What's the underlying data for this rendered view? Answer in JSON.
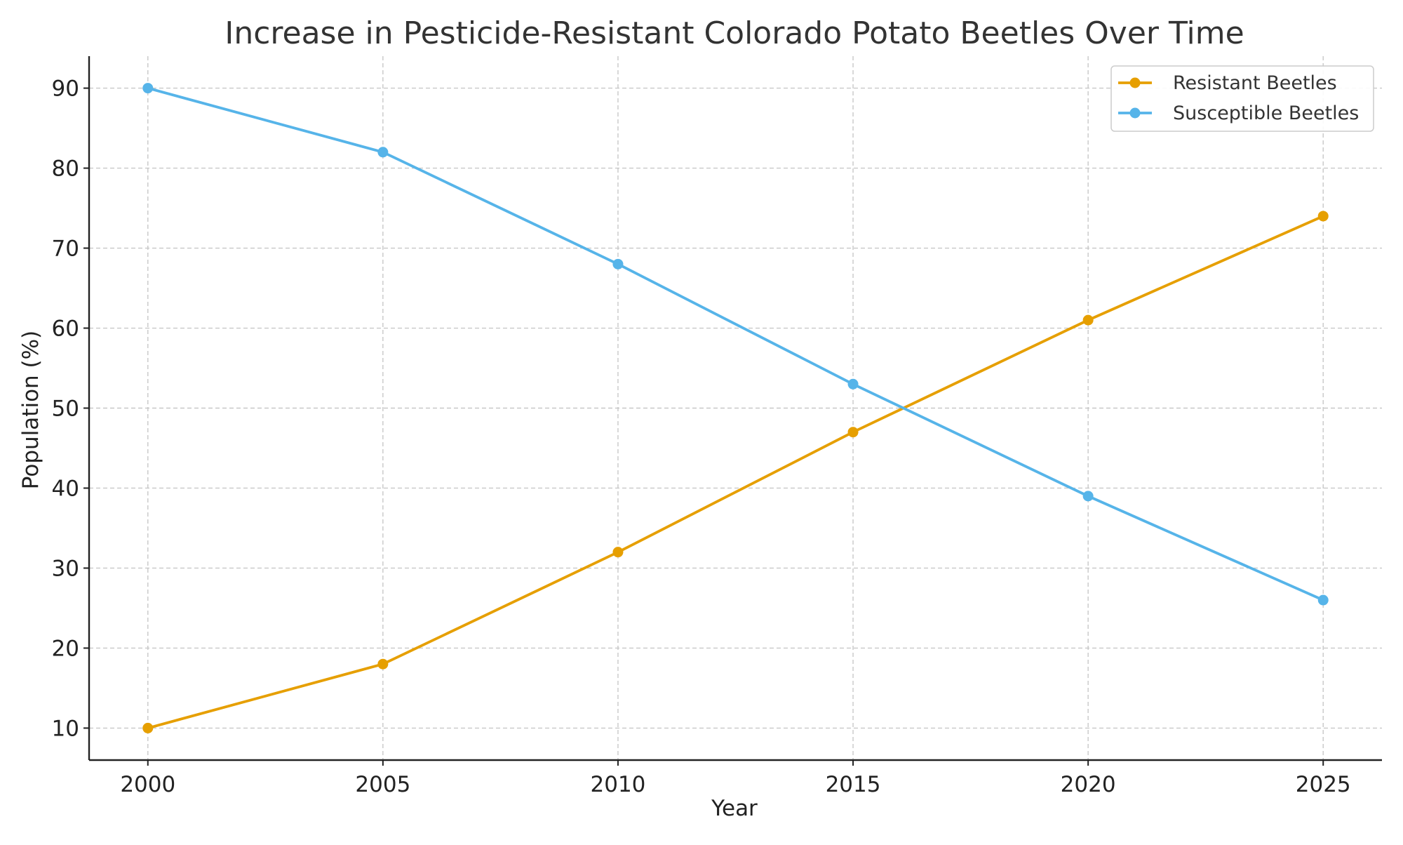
{
  "chart_data": {
    "type": "line",
    "title": "Increase in Pesticide-Resistant Colorado Potato Beetles Over Time",
    "xlabel": "Year",
    "ylabel": "Population (%)",
    "x": [
      2000,
      2005,
      2010,
      2015,
      2020,
      2025
    ],
    "x_ticks": [
      "2000",
      "2005",
      "2010",
      "2015",
      "2020",
      "2025"
    ],
    "y_ticks": [
      "10",
      "20",
      "30",
      "40",
      "50",
      "60",
      "70",
      "80",
      "90"
    ],
    "xlim": [
      1998.75,
      2026.25
    ],
    "ylim": [
      6,
      94
    ],
    "grid": true,
    "legend_position": "top-right",
    "series": [
      {
        "name": "Resistant Beetles",
        "color": "#E69F00",
        "marker": "circle",
        "values": [
          10,
          18,
          32,
          47,
          61,
          74
        ]
      },
      {
        "name": "Susceptible Beetles",
        "color": "#56B4E9",
        "marker": "circle",
        "values": [
          90,
          82,
          68,
          53,
          39,
          26
        ]
      }
    ]
  }
}
